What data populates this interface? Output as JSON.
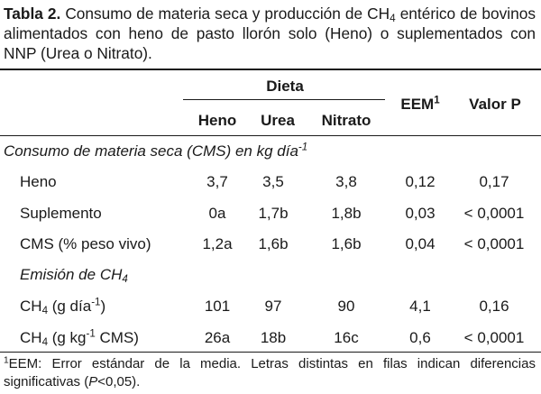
{
  "caption": {
    "label": "Tabla 2.",
    "text_1": " Consumo de materia seca y producción de CH",
    "sub": "4",
    "text_2": " entérico de bovinos alimentados con heno de pasto llorón solo (Heno) o suplementados con NNP (Urea o Nitrato)."
  },
  "header": {
    "group": "Dieta",
    "cols": [
      "Heno",
      "Urea",
      "Nitrato"
    ],
    "eem": "EEM",
    "eem_sup": "1",
    "pvalue": "Valor P"
  },
  "sections": [
    {
      "title": "Consumo de materia seca (CMS) en kg día",
      "title_sup": "-1"
    },
    {
      "title": "Emisión de CH",
      "title_sub": "4"
    }
  ],
  "rows": [
    {
      "label": "Heno",
      "heno": "3,7",
      "urea": "3,5",
      "nitrato": "3,8",
      "eem": "0,12",
      "p": "0,17"
    },
    {
      "label": "Suplemento",
      "heno": "0a",
      "urea": "1,7b",
      "nitrato": "1,8b",
      "eem": "0,03",
      "p": "< 0,0001"
    },
    {
      "label": "CMS (% peso vivo)",
      "heno": "1,2a",
      "urea": "1,6b",
      "nitrato": "1,6b",
      "eem": "0,04",
      "p": "< 0,0001"
    },
    {
      "label_a": "CH",
      "label_sub": "4",
      "label_b": " (g día",
      "label_sup": "-1",
      "label_c": ")",
      "heno": "101",
      "urea": "97",
      "nitrato": "90",
      "eem": "4,1",
      "p": "0,16"
    },
    {
      "label_a": "CH",
      "label_sub": "4",
      "label_b": " (g kg",
      "label_sup": "-1",
      "label_c": " CMS)",
      "heno": "26a",
      "urea": "18b",
      "nitrato": "16c",
      "eem": "0,6",
      "p": "< 0,0001"
    }
  ],
  "footnote": {
    "sup": "1",
    "text_1": "EEM: Error estándar de la media. Letras distintas en filas indican diferencias significativas (",
    "p_italic": "P",
    "text_2": "<0,05)."
  }
}
